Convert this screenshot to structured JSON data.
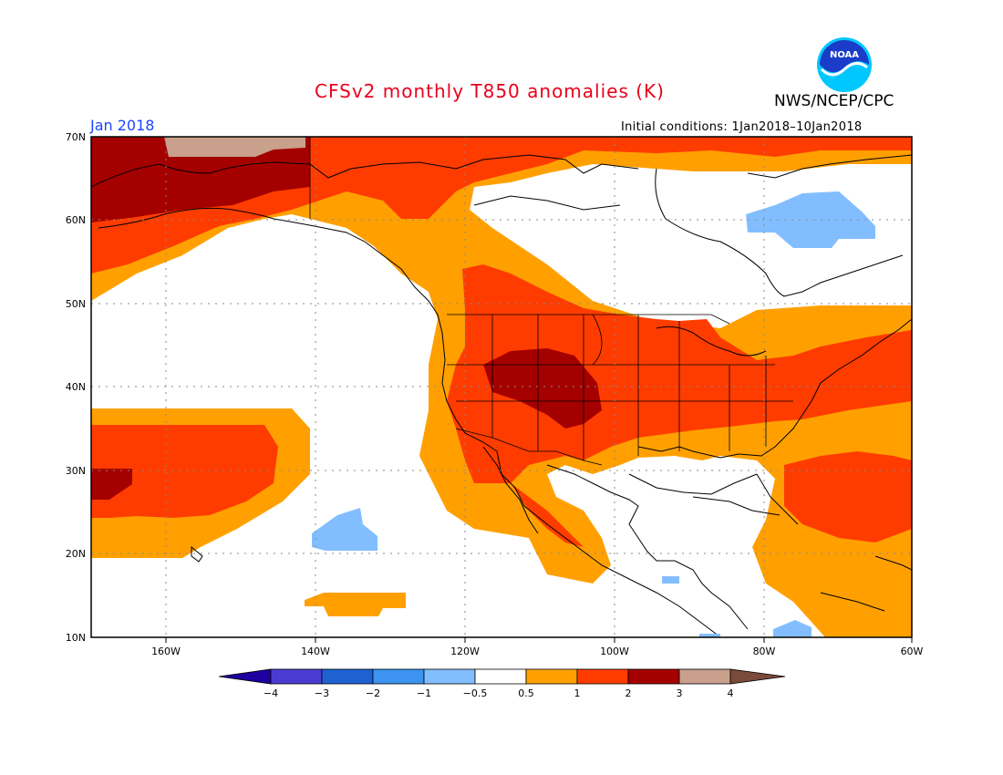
{
  "title": "CFSv2 monthly T850 anomalies (K)",
  "agency": "NWS/NCEP/CPC",
  "logo_text": "NOAA",
  "month": "Jan 2018",
  "initial_conditions": "Initial conditions: 1Jan2018–10Jan2018",
  "map": {
    "lon_range": [
      -172,
      -60
    ],
    "lat_range": [
      10,
      70
    ],
    "x_ticks": [
      "160W",
      "140W",
      "120W",
      "100W",
      "80W",
      "60W"
    ],
    "y_ticks": [
      "70N",
      "60N",
      "50N",
      "40N",
      "30N",
      "20N",
      "10N"
    ],
    "grid": "dotted",
    "anomaly_regions": [
      {
        "name": "Western Canada / US warm",
        "level": "1 to 2"
      },
      {
        "name": "Four Corners / Colorado",
        "level": "2 to 3"
      },
      {
        "name": "Northern Pacific / Alaska",
        "level": "2 to 3"
      },
      {
        "name": "Subtropical Pacific warm",
        "level": "1 to 2"
      },
      {
        "name": "Western Atlantic warm",
        "level": "1 to 2"
      },
      {
        "name": "Hudson Bay cool",
        "level": "-1 to -0.5"
      },
      {
        "name": "Central Pacific cool",
        "level": "-1 to -0.5"
      }
    ]
  },
  "legend": {
    "labels": [
      "−4",
      "−3",
      "−2",
      "−1",
      "−0.5",
      "0.5",
      "1",
      "2",
      "3",
      "4"
    ],
    "colors": [
      "#1e00a0",
      "#4a3cd2",
      "#1e62d2",
      "#3c94f0",
      "#82beff",
      "#ffffff",
      "#ffa000",
      "#ff3c00",
      "#a50000",
      "#c8a08c",
      "#7a4a3a"
    ]
  }
}
